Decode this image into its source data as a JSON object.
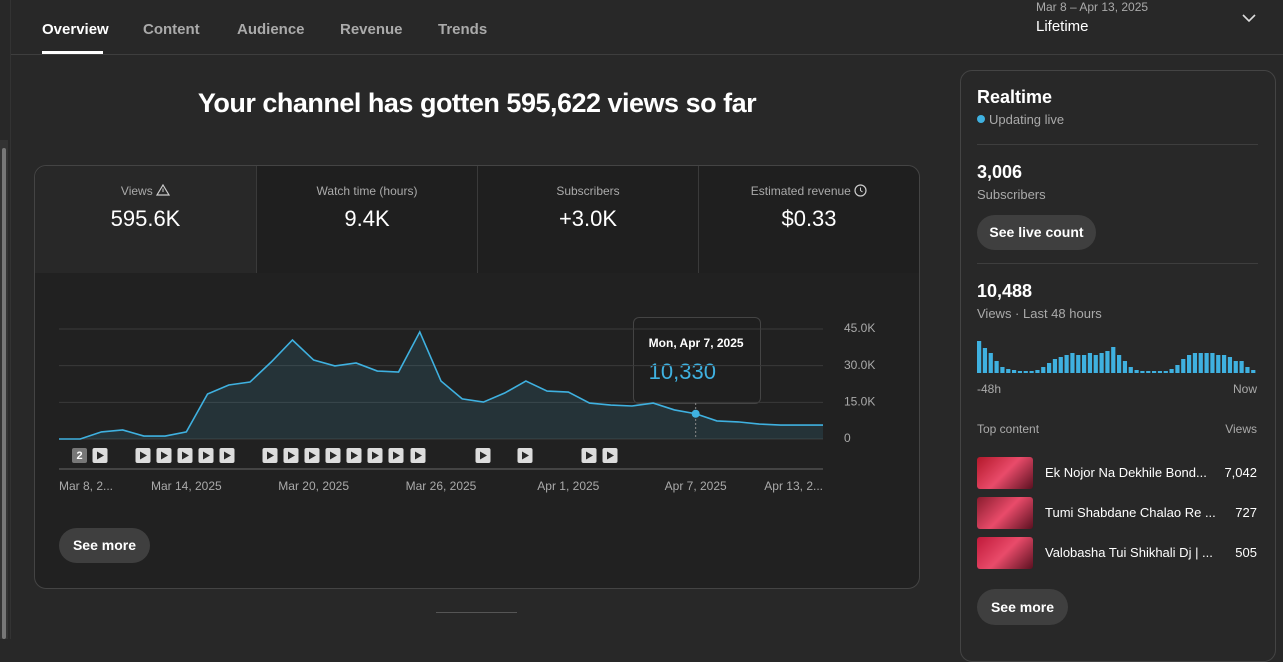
{
  "tabs": [
    "Overview",
    "Content",
    "Audience",
    "Revenue",
    "Trends"
  ],
  "date_range": {
    "range": "Mar 8 – Apr 13, 2025",
    "label": "Lifetime"
  },
  "headline": "Your channel has gotten 595,622 views so far",
  "metrics": [
    {
      "label": "Views",
      "value": "595.6K"
    },
    {
      "label": "Watch time (hours)",
      "value": "9.4K"
    },
    {
      "label": "Subscribers",
      "value": "+3.0K"
    },
    {
      "label": "Estimated revenue",
      "value": "$0.33"
    }
  ],
  "chart_data": [
    {
      "type": "line",
      "color": "#3fb1e0",
      "categories": [
        "Mar 8, 2...",
        null,
        null,
        null,
        null,
        null,
        "Mar 14, 2025",
        null,
        null,
        null,
        null,
        null,
        "Mar 20, 2025",
        null,
        null,
        null,
        null,
        null,
        "Mar 26, 2025",
        null,
        null,
        null,
        null,
        null,
        "Apr 1, 2025",
        null,
        null,
        null,
        null,
        null,
        "Apr 7, 2025",
        null,
        null,
        null,
        null,
        null,
        "Apr 13, 2..."
      ],
      "values": [
        0,
        0,
        2900,
        3700,
        1200,
        1200,
        2900,
        18400,
        22100,
        23300,
        31500,
        40500,
        32300,
        29900,
        31100,
        27800,
        27400,
        43800,
        23700,
        16400,
        15100,
        18800,
        23700,
        19600,
        19200,
        14700,
        13900,
        13500,
        14700,
        11900,
        10330,
        7400,
        7000,
        6100,
        5700,
        5700,
        5700
      ],
      "value_labels": [
        null,
        null,
        null,
        null,
        null,
        null,
        null,
        null,
        null,
        null,
        null,
        null,
        null,
        null,
        null,
        null,
        null,
        null,
        null,
        null,
        null,
        null,
        null,
        null,
        null,
        null,
        null,
        null,
        null,
        null,
        "10,330",
        null,
        null,
        null,
        null,
        null,
        null
      ],
      "tooltip_title": "Mon, Apr 7, 2025",
      "ylim": [
        0,
        45000
      ],
      "yticks": [
        0,
        {
          "value": 15000,
          "label": "15.0K"
        },
        {
          "value": 30000,
          "label": "30.0K"
        },
        {
          "value": 45000,
          "label": "45.0K"
        }
      ],
      "grid": true
    },
    {
      "type": "bar",
      "color": "#3fb1e0",
      "categories": [
        "-48h",
        null,
        null,
        null,
        null,
        null,
        null,
        null,
        null,
        null,
        null,
        null,
        null,
        null,
        null,
        null,
        null,
        null,
        null,
        null,
        null,
        null,
        null,
        null,
        null,
        null,
        null,
        null,
        null,
        null,
        null,
        null,
        null,
        null,
        null,
        null,
        null,
        null,
        null,
        null,
        null,
        null,
        null,
        null,
        null,
        null,
        null,
        "Now"
      ],
      "values": [
        576,
        450,
        360,
        216,
        108,
        72,
        54,
        36,
        36,
        36,
        54,
        108,
        180,
        252,
        288,
        324,
        360,
        324,
        324,
        360,
        324,
        360,
        396,
        468,
        324,
        216,
        108,
        54,
        36,
        36,
        36,
        36,
        36,
        72,
        144,
        252,
        324,
        360,
        360,
        360,
        360,
        324,
        324,
        288,
        216,
        216,
        108,
        54
      ]
    }
  ],
  "publish_markers": {
    "badge": "2"
  },
  "see_more": "See more",
  "realtime": {
    "title": "Realtime",
    "status": "Updating live",
    "subscribers": {
      "value": "3,006",
      "label": "Subscribers"
    },
    "live_button": "See live count",
    "views": {
      "value": "10,488",
      "label": "Views · Last 48 hours"
    },
    "top_content": {
      "header": "Top content",
      "column": "Views",
      "items": [
        {
          "title": "Ek Nojor Na Dekhile Bond...",
          "views": "7,042"
        },
        {
          "title": "Tumi Shabdane Chalao Re ...",
          "views": "727"
        },
        {
          "title": "Valobasha Tui Shikhali Dj | ...",
          "views": "505"
        }
      ]
    },
    "see_more": "See more"
  }
}
